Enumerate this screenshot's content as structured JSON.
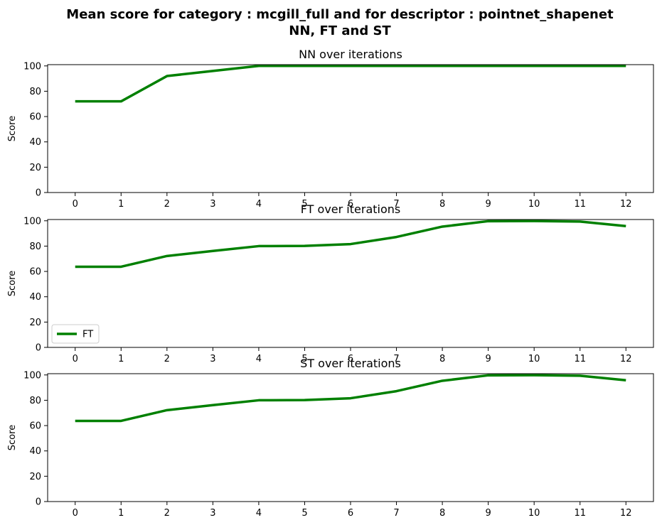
{
  "figure": {
    "title_line1": "Mean score for category : mcgill_full and for descriptor : pointnet_shapenet",
    "title_line2": "NN, FT and ST"
  },
  "chart_data": [
    {
      "type": "line",
      "title": "NN over iterations",
      "xlabel": "",
      "ylabel": "Score",
      "x": [
        0,
        1,
        2,
        3,
        4,
        5,
        6,
        7,
        8,
        9,
        10,
        11,
        12
      ],
      "xlim": [
        -0.6,
        12.6
      ],
      "ylim": [
        0,
        101
      ],
      "yticks": [
        0,
        20,
        40,
        60,
        80,
        100
      ],
      "series": [
        {
          "name": "",
          "color": "#008000",
          "values": [
            72.0,
            72.0,
            92.0,
            96.0,
            100.0,
            100.0,
            100.0,
            100.0,
            100.0,
            100.0,
            100.0,
            100.0,
            100.0
          ]
        }
      ],
      "legend": null
    },
    {
      "type": "line",
      "title": "FT over iterations",
      "xlabel": "",
      "ylabel": "Score",
      "x": [
        0,
        1,
        2,
        3,
        4,
        5,
        6,
        7,
        8,
        9,
        10,
        11,
        12
      ],
      "xlim": [
        -0.6,
        12.6
      ],
      "ylim": [
        0,
        101
      ],
      "yticks": [
        0,
        20,
        40,
        60,
        80,
        100
      ],
      "series": [
        {
          "name": "FT",
          "color": "#008000",
          "values": [
            63.7,
            63.7,
            72.2,
            76.2,
            80.0,
            80.2,
            81.6,
            87.2,
            95.4,
            99.7,
            99.8,
            99.4,
            95.8
          ]
        }
      ],
      "legend": "lower-left"
    },
    {
      "type": "line",
      "title": "ST over iterations",
      "xlabel": "",
      "ylabel": "Score",
      "x": [
        0,
        1,
        2,
        3,
        4,
        5,
        6,
        7,
        8,
        9,
        10,
        11,
        12
      ],
      "xlim": [
        -0.6,
        12.6
      ],
      "ylim": [
        0,
        101
      ],
      "yticks": [
        0,
        20,
        40,
        60,
        80,
        100
      ],
      "series": [
        {
          "name": "",
          "color": "#008000",
          "values": [
            63.7,
            63.7,
            72.2,
            76.2,
            80.0,
            80.2,
            81.6,
            87.2,
            95.4,
            99.7,
            99.8,
            99.4,
            95.8
          ]
        }
      ],
      "legend": null
    }
  ]
}
